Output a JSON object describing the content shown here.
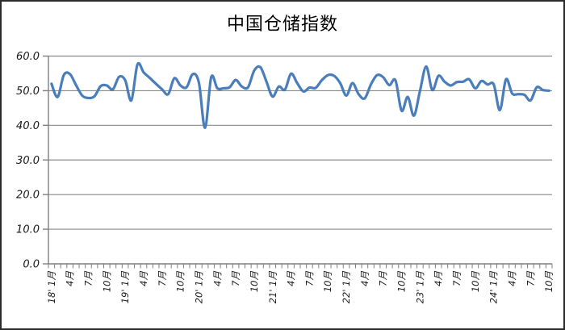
{
  "window": {
    "background": "#FFFFFF",
    "frame_color": "#2B2B2B"
  },
  "chart_data": {
    "type": "line",
    "title": "中国仓储指数",
    "legend": "none",
    "grid": true,
    "smooth": true,
    "ylim": [
      0,
      60
    ],
    "y_ticks": [
      0,
      10,
      20,
      30,
      40,
      50,
      60
    ],
    "y_tick_labels": [
      "0.0",
      "10.0",
      "20.0",
      "30.0",
      "40.0",
      "50.0",
      "60.0"
    ],
    "x_tick_every": 3,
    "x_tick_labels": [
      "18' 1月",
      "4月",
      "7月",
      "10月",
      "19' 1月",
      "4月",
      "7月",
      "10月",
      "20' 1月",
      "4月",
      "7月",
      "10月",
      "21' 1月",
      "4月",
      "7月",
      "10月",
      "22' 1月",
      "4月",
      "7月",
      "10月",
      "23' 1月",
      "4月",
      "7月",
      "10月",
      "24' 1月",
      "4月",
      "7月",
      "10月"
    ],
    "x_start": "2018-01",
    "x_end": "2024-10",
    "n_points": 82,
    "series": [
      {
        "name": "中国仓储指数",
        "values": [
          52.0,
          48.2,
          54.5,
          54.8,
          51.6,
          48.6,
          47.9,
          48.4,
          51.3,
          51.5,
          50.4,
          54.0,
          53.0,
          47.2,
          57.6,
          55.3,
          53.7,
          52.0,
          50.4,
          49.0,
          53.6,
          51.5,
          51.0,
          54.8,
          52.3,
          39.3,
          53.9,
          50.7,
          50.7,
          51.0,
          53.1,
          51.2,
          51.0,
          55.8,
          56.8,
          52.6,
          48.3,
          51.2,
          50.3,
          54.9,
          52.2,
          49.8,
          50.9,
          50.8,
          53.0,
          54.5,
          54.3,
          52.2,
          48.6,
          52.2,
          49.0,
          47.8,
          51.8,
          54.5,
          53.9,
          51.6,
          53.0,
          44.2,
          48.2,
          42.8,
          50.0,
          57.0,
          50.2,
          54.3,
          52.6,
          51.5,
          52.5,
          52.6,
          53.3,
          50.7,
          52.8,
          51.8,
          51.8,
          44.4,
          53.3,
          49.2,
          49.0,
          48.8,
          47.2,
          51.0,
          50.2,
          50.0
        ]
      }
    ],
    "colors": {
      "line": "#4A7EBB",
      "grid": "#8A8A8A",
      "axis": "#7F7F7F",
      "tick": "#7F7F7F",
      "text": "#1A1A1A",
      "background": "#FFFFFF"
    }
  }
}
